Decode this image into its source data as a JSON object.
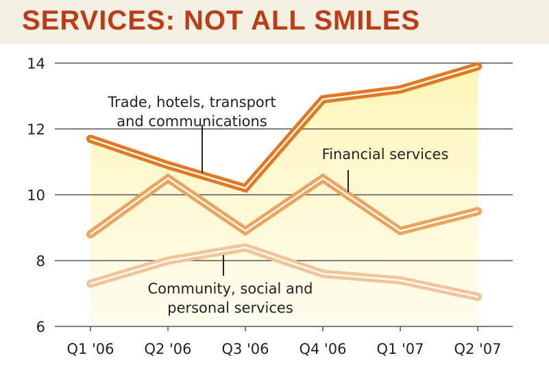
{
  "chart_data": {
    "type": "line",
    "title": "SERVICES: NOT ALL SMILES",
    "categories": [
      "Q1 '06",
      "Q2 '06",
      "Q3 '06",
      "Q4 '06",
      "Q1 '07",
      "Q2 '07"
    ],
    "ylim": [
      6,
      14
    ],
    "yticks": [
      "6",
      "8",
      "10",
      "12",
      "14"
    ],
    "grid": true,
    "series": [
      {
        "key": "trade",
        "label_lines": [
          "Trade, hotels, transport",
          "and communications"
        ],
        "color": "#e8771c",
        "values": [
          11.7,
          10.9,
          10.2,
          12.9,
          13.2,
          13.9
        ]
      },
      {
        "key": "financial",
        "label_lines": [
          "Financial services"
        ],
        "color": "#eea25a",
        "values": [
          8.8,
          10.5,
          8.9,
          10.5,
          8.9,
          9.5
        ]
      },
      {
        "key": "community",
        "label_lines": [
          "Community, social and",
          "personal services"
        ],
        "color": "#f4c496",
        "values": [
          7.3,
          8.0,
          8.4,
          7.6,
          7.4,
          6.9
        ]
      }
    ]
  }
}
